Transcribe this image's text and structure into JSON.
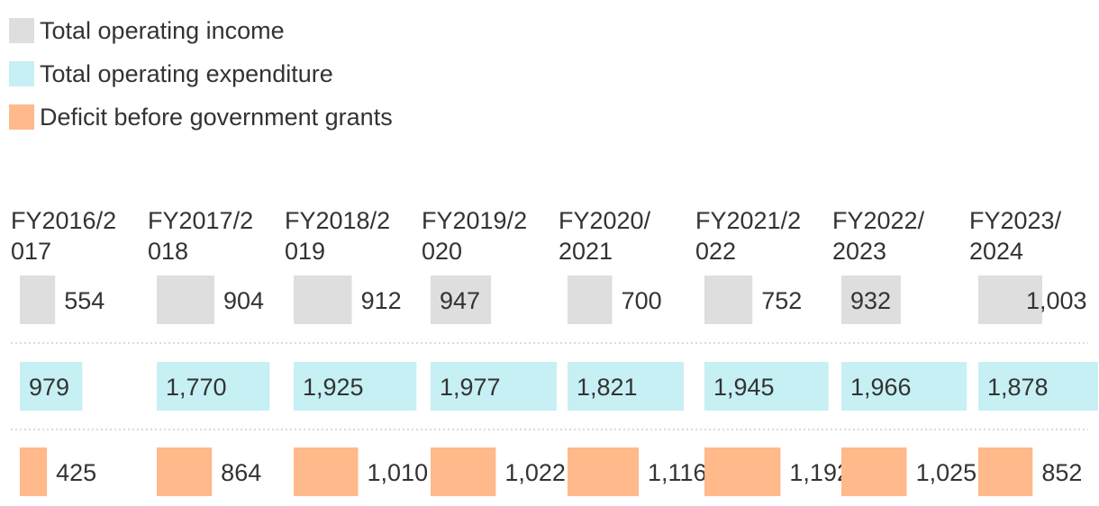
{
  "chart_data": {
    "type": "bar",
    "layout": "small-multiples-rows",
    "categories": [
      "FY2016/2017",
      "FY2017/2018",
      "FY2018/2019",
      "FY2019/2020",
      "FY2020/2021",
      "FY2021/2022",
      "FY2022/2023",
      "FY2023/2024"
    ],
    "category_label_lines": [
      [
        "FY2016/2",
        "017"
      ],
      [
        "FY2017/2",
        "018"
      ],
      [
        "FY2018/2",
        "019"
      ],
      [
        "FY2019/2",
        "020"
      ],
      [
        "FY2020/",
        "2021"
      ],
      [
        "FY2021/2",
        "022"
      ],
      [
        "FY2022/",
        "2023"
      ],
      [
        "FY2023/",
        "2024"
      ]
    ],
    "series": [
      {
        "name": "Total operating income",
        "color": "#dedede",
        "values": [
          554,
          904,
          912,
          947,
          700,
          752,
          932,
          1003
        ],
        "labels": [
          "554",
          "904",
          "912",
          "947",
          "700",
          "752",
          "932",
          "1,003"
        ]
      },
      {
        "name": "Total operating expenditure",
        "color": "#c6f0f4",
        "values": [
          979,
          1770,
          1925,
          1977,
          1821,
          1945,
          1966,
          1878
        ],
        "labels": [
          "979",
          "1,770",
          "1,925",
          "1,977",
          "1,821",
          "1,945",
          "1,966",
          "1,878"
        ]
      },
      {
        "name": "Deficit before government grants",
        "color": "#ffb98a",
        "values": [
          425,
          864,
          1010,
          1022,
          1116,
          1192,
          1025,
          852
        ],
        "labels": [
          "425",
          "864",
          "1,010",
          "1,022",
          "1,116",
          "1,192",
          "1,025",
          "852"
        ]
      }
    ],
    "legend_position": "top-left",
    "grid": false
  }
}
